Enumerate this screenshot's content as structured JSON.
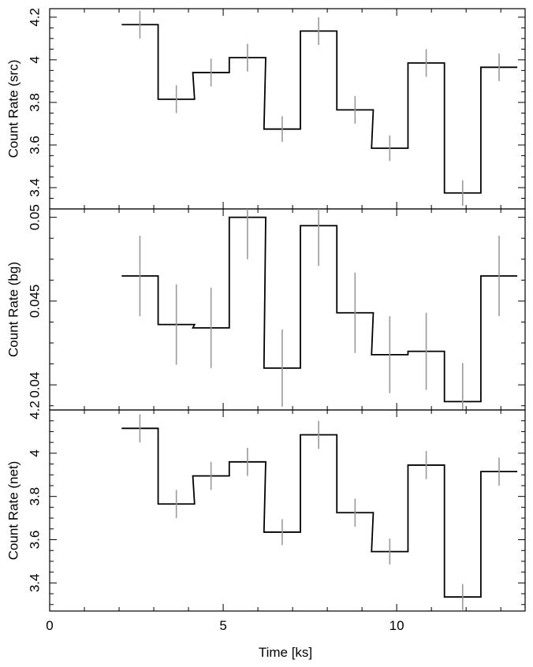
{
  "chart_data": [
    {
      "type": "line",
      "step": true,
      "ylabel": "Count Rate (src)",
      "ylim": [
        3.3,
        4.24
      ],
      "yticks": [
        3.4,
        3.6,
        3.8,
        4,
        4.2
      ],
      "ytick_labels": [
        "3.4",
        "3.6",
        "3.8",
        "4",
        "4.2"
      ],
      "x": [
        2.6,
        3.65,
        4.65,
        5.7,
        6.7,
        7.75,
        8.8,
        9.8,
        10.85,
        11.9,
        12.95
      ],
      "values": [
        4.165,
        3.815,
        3.94,
        4.01,
        3.675,
        4.135,
        3.765,
        3.585,
        3.985,
        3.375,
        3.965
      ],
      "errors": [
        0.065,
        0.065,
        0.065,
        0.065,
        0.06,
        0.065,
        0.065,
        0.06,
        0.065,
        0.06,
        0.065
      ]
    },
    {
      "type": "line",
      "step": true,
      "ylabel": "Count Rate (bg)",
      "ylim": [
        0.0385,
        0.0505
      ],
      "yticks": [
        0.04,
        0.045,
        0.05
      ],
      "ytick_labels": [
        "0.04",
        "0.045",
        "0.05"
      ],
      "x": [
        2.6,
        3.65,
        4.65,
        5.7,
        6.7,
        7.75,
        8.8,
        9.8,
        10.85,
        11.9,
        12.95
      ],
      "values": [
        0.0465,
        0.0436,
        0.0434,
        0.05,
        0.041,
        0.0495,
        0.0443,
        0.0418,
        0.042,
        0.039,
        0.0465
      ],
      "errors": [
        0.0024,
        0.0024,
        0.0024,
        0.0025,
        0.0023,
        0.0024,
        0.0024,
        0.0023,
        0.0023,
        0.0023,
        0.0024
      ]
    },
    {
      "type": "line",
      "step": true,
      "ylabel": "Count Rate (net)",
      "ylim": [
        3.27,
        4.2
      ],
      "yticks": [
        3.4,
        3.6,
        3.8,
        4,
        4.2
      ],
      "ytick_labels": [
        "3.4",
        "3.6",
        "3.8",
        "4",
        "4.2"
      ],
      "x": [
        2.6,
        3.65,
        4.65,
        5.7,
        6.7,
        7.75,
        8.8,
        9.8,
        10.85,
        11.9,
        12.95
      ],
      "values": [
        4.115,
        3.765,
        3.895,
        3.96,
        3.635,
        4.085,
        3.725,
        3.545,
        3.945,
        3.335,
        3.915
      ],
      "errors": [
        0.065,
        0.065,
        0.065,
        0.065,
        0.06,
        0.065,
        0.065,
        0.06,
        0.065,
        0.06,
        0.065
      ]
    }
  ],
  "x_axis": {
    "xlabel": "Time [ks]",
    "xlim": [
      0,
      13.7
    ],
    "xticks": [
      0,
      5,
      10
    ],
    "xtick_labels": [
      "0",
      "5",
      "10"
    ],
    "bin_width": 1.05
  }
}
